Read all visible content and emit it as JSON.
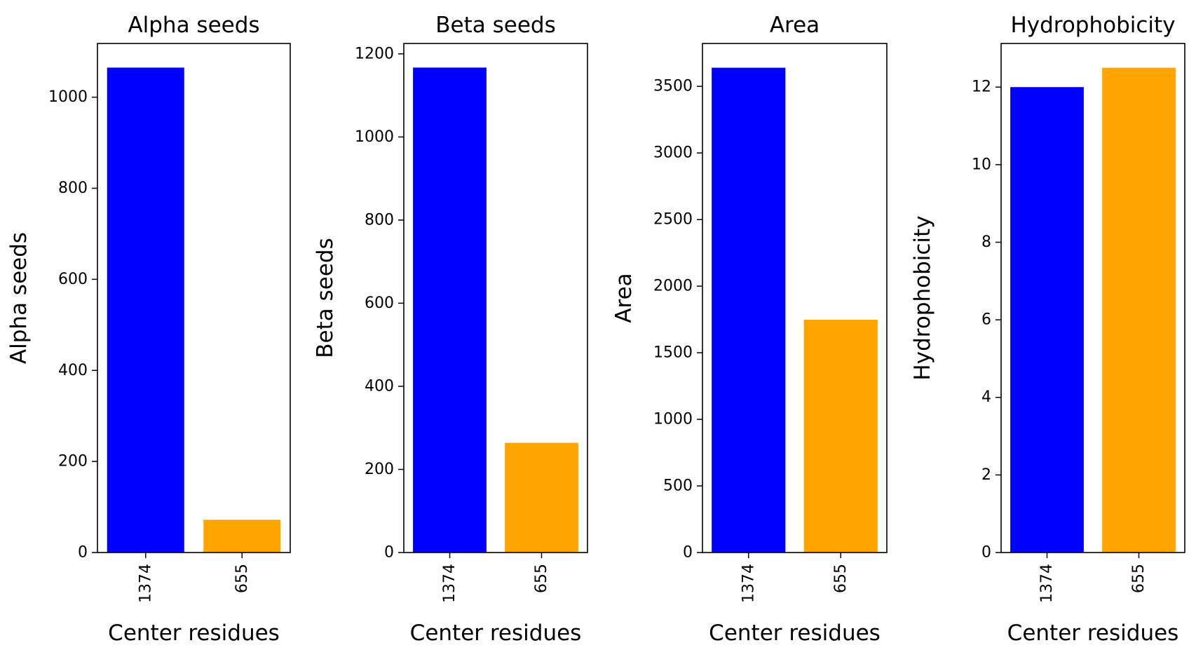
{
  "chart_data": [
    {
      "type": "bar",
      "title": "Alpha seeds",
      "xlabel": "Center residues",
      "ylabel": "Alpha seeds",
      "categories": [
        "1374",
        "655"
      ],
      "values": [
        1065,
        72
      ],
      "colors": [
        "#0000ff",
        "#ffa500"
      ],
      "ylim": [
        0,
        1118
      ],
      "yticks": [
        0,
        200,
        400,
        600,
        800,
        1000
      ],
      "grid": false
    },
    {
      "type": "bar",
      "title": "Beta seeds",
      "xlabel": "Center residues",
      "ylabel": "Beta seeds",
      "categories": [
        "1374",
        "655"
      ],
      "values": [
        1167,
        264
      ],
      "colors": [
        "#0000ff",
        "#ffa500"
      ],
      "ylim": [
        0,
        1225
      ],
      "yticks": [
        0,
        200,
        400,
        600,
        800,
        1000,
        1200
      ],
      "grid": false
    },
    {
      "type": "bar",
      "title": "Area",
      "xlabel": "Center residues",
      "ylabel": "Area",
      "categories": [
        "1374",
        "655"
      ],
      "values": [
        3640,
        1748
      ],
      "colors": [
        "#0000ff",
        "#ffa500"
      ],
      "ylim": [
        0,
        3822
      ],
      "yticks": [
        0,
        500,
        1000,
        1500,
        2000,
        2500,
        3000,
        3500
      ],
      "grid": false
    },
    {
      "type": "bar",
      "title": "Hydrophobicity",
      "xlabel": "Center residues",
      "ylabel": "Hydrophobicity",
      "categories": [
        "1374",
        "655"
      ],
      "values": [
        12.0,
        12.5
      ],
      "colors": [
        "#0000ff",
        "#ffa500"
      ],
      "ylim": [
        0,
        13.125
      ],
      "yticks": [
        0,
        2,
        4,
        6,
        8,
        10,
        12
      ],
      "grid": false
    }
  ]
}
